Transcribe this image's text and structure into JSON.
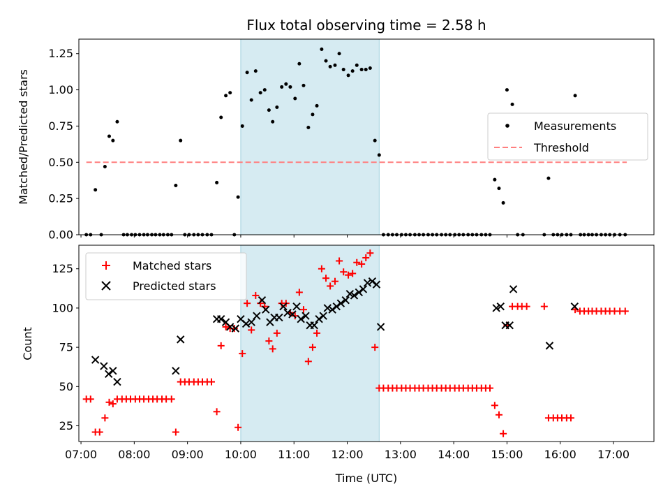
{
  "chart_data": {
    "title": "Flux total observing time = 2.58 h",
    "xlabel": "Time (UTC)",
    "x_unit": "hours UTC",
    "xlim": [
      6.96,
      17.76
    ],
    "xticks": [
      7,
      8,
      9,
      10,
      11,
      12,
      13,
      14,
      15,
      16,
      17
    ],
    "xtick_labels": [
      "07:00",
      "08:00",
      "09:00",
      "10:00",
      "11:00",
      "12:00",
      "13:00",
      "14:00",
      "15:00",
      "16:00",
      "17:00"
    ],
    "highlight_span": [
      10.0,
      12.6
    ],
    "colors": {
      "measurements": "#000000",
      "threshold": "#ff7f7f",
      "matched": "#ff0000",
      "predicted": "#000000",
      "span": "#add8e6"
    },
    "top": {
      "type": "scatter",
      "ylabel": "Matched/Predicted stars",
      "ylim": [
        0,
        1.35
      ],
      "yticks": [
        0,
        0.25,
        0.5,
        0.75,
        1.0,
        1.25
      ],
      "ytick_labels": [
        "0.00",
        "0.25",
        "0.50",
        "0.75",
        "1.00",
        "1.25"
      ],
      "legend": [
        "Measurements",
        "Threshold"
      ],
      "threshold": {
        "value": 0.5,
        "x": [
          7.1,
          17.25
        ]
      },
      "points": [
        [
          7.1,
          0
        ],
        [
          7.18,
          0
        ],
        [
          7.27,
          0.31
        ],
        [
          7.38,
          0
        ],
        [
          7.45,
          0.47
        ],
        [
          7.53,
          0.68
        ],
        [
          7.6,
          0.65
        ],
        [
          7.68,
          0.78
        ],
        [
          7.8,
          0
        ],
        [
          7.87,
          0
        ],
        [
          7.95,
          0
        ],
        [
          8.02,
          0
        ],
        [
          8.1,
          0
        ],
        [
          8.18,
          0
        ],
        [
          8.25,
          0
        ],
        [
          8.33,
          0
        ],
        [
          8.4,
          0
        ],
        [
          8.48,
          0
        ],
        [
          8.55,
          0
        ],
        [
          8.63,
          0
        ],
        [
          8.7,
          0
        ],
        [
          8.78,
          0.34
        ],
        [
          8.87,
          0.65
        ],
        [
          8.95,
          0
        ],
        [
          9.03,
          0
        ],
        [
          9.12,
          0
        ],
        [
          9.2,
          0
        ],
        [
          9.28,
          0
        ],
        [
          9.37,
          0
        ],
        [
          9.45,
          0
        ],
        [
          9.55,
          0.36
        ],
        [
          9.63,
          0.81
        ],
        [
          9.72,
          0.96
        ],
        [
          9.8,
          0.98
        ],
        [
          9.88,
          0
        ],
        [
          9.95,
          0.26
        ],
        [
          10.03,
          0.75
        ],
        [
          10.12,
          1.12
        ],
        [
          10.2,
          0.93
        ],
        [
          10.28,
          1.13
        ],
        [
          10.37,
          0.98
        ],
        [
          10.45,
          1.0
        ],
        [
          10.53,
          0.86
        ],
        [
          10.6,
          0.78
        ],
        [
          10.68,
          0.88
        ],
        [
          10.77,
          1.02
        ],
        [
          10.85,
          1.04
        ],
        [
          10.93,
          1.02
        ],
        [
          11.02,
          0.94
        ],
        [
          11.1,
          1.18
        ],
        [
          11.18,
          1.03
        ],
        [
          11.27,
          0.74
        ],
        [
          11.35,
          0.83
        ],
        [
          11.43,
          0.89
        ],
        [
          11.52,
          1.28
        ],
        [
          11.6,
          1.2
        ],
        [
          11.68,
          1.16
        ],
        [
          11.77,
          1.17
        ],
        [
          11.85,
          1.25
        ],
        [
          11.93,
          1.14
        ],
        [
          12.02,
          1.1
        ],
        [
          12.1,
          1.13
        ],
        [
          12.18,
          1.17
        ],
        [
          12.27,
          1.14
        ],
        [
          12.35,
          1.14
        ],
        [
          12.43,
          1.15
        ],
        [
          12.52,
          0.65
        ],
        [
          12.6,
          0.55
        ],
        [
          12.68,
          0
        ],
        [
          12.77,
          0
        ],
        [
          12.85,
          0
        ],
        [
          12.93,
          0
        ],
        [
          13.02,
          0
        ],
        [
          13.1,
          0
        ],
        [
          13.18,
          0
        ],
        [
          13.27,
          0
        ],
        [
          13.35,
          0
        ],
        [
          13.43,
          0
        ],
        [
          13.52,
          0
        ],
        [
          13.6,
          0
        ],
        [
          13.68,
          0
        ],
        [
          13.77,
          0
        ],
        [
          13.85,
          0
        ],
        [
          13.93,
          0
        ],
        [
          14.02,
          0
        ],
        [
          14.1,
          0
        ],
        [
          14.18,
          0
        ],
        [
          14.27,
          0
        ],
        [
          14.35,
          0
        ],
        [
          14.43,
          0
        ],
        [
          14.52,
          0
        ],
        [
          14.6,
          0
        ],
        [
          14.68,
          0
        ],
        [
          14.77,
          0.38
        ],
        [
          14.85,
          0.32
        ],
        [
          14.93,
          0.22
        ],
        [
          15.0,
          1.0
        ],
        [
          15.1,
          0.9
        ],
        [
          15.2,
          0
        ],
        [
          15.3,
          0
        ],
        [
          15.7,
          0
        ],
        [
          15.78,
          0.39
        ],
        [
          15.87,
          0
        ],
        [
          15.95,
          0
        ],
        [
          16.03,
          0
        ],
        [
          16.12,
          0
        ],
        [
          16.2,
          0
        ],
        [
          16.28,
          0.96
        ],
        [
          16.38,
          0
        ],
        [
          16.45,
          0
        ],
        [
          16.53,
          0
        ],
        [
          16.6,
          0
        ],
        [
          16.68,
          0
        ],
        [
          16.77,
          0
        ],
        [
          16.85,
          0
        ],
        [
          16.93,
          0
        ],
        [
          17.02,
          0
        ],
        [
          17.12,
          0
        ],
        [
          17.22,
          0
        ]
      ]
    },
    "bottom": {
      "type": "scatter",
      "ylabel": "Count",
      "ylim": [
        15,
        140
      ],
      "yticks": [
        25,
        50,
        75,
        100,
        125
      ],
      "ytick_labels": [
        "25",
        "50",
        "75",
        "100",
        "125"
      ],
      "legend": [
        "Matched stars",
        "Predicted stars"
      ],
      "matched": [
        [
          7.1,
          42
        ],
        [
          7.18,
          42
        ],
        [
          7.27,
          21
        ],
        [
          7.35,
          21
        ],
        [
          7.45,
          30
        ],
        [
          7.53,
          40
        ],
        [
          7.6,
          39
        ],
        [
          7.68,
          42
        ],
        [
          7.77,
          42
        ],
        [
          7.85,
          42
        ],
        [
          7.93,
          42
        ],
        [
          8.02,
          42
        ],
        [
          8.1,
          42
        ],
        [
          8.18,
          42
        ],
        [
          8.27,
          42
        ],
        [
          8.35,
          42
        ],
        [
          8.43,
          42
        ],
        [
          8.52,
          42
        ],
        [
          8.6,
          42
        ],
        [
          8.7,
          42
        ],
        [
          8.78,
          21
        ],
        [
          8.87,
          53
        ],
        [
          8.95,
          53
        ],
        [
          9.03,
          53
        ],
        [
          9.12,
          53
        ],
        [
          9.2,
          53
        ],
        [
          9.28,
          53
        ],
        [
          9.37,
          53
        ],
        [
          9.45,
          53
        ],
        [
          9.55,
          34
        ],
        [
          9.63,
          76
        ],
        [
          9.72,
          88
        ],
        [
          9.8,
          87
        ],
        [
          9.88,
          87
        ],
        [
          9.95,
          24
        ],
        [
          10.03,
          71
        ],
        [
          10.12,
          103
        ],
        [
          10.2,
          86
        ],
        [
          10.28,
          108
        ],
        [
          10.37,
          103
        ],
        [
          10.45,
          101
        ],
        [
          10.53,
          79
        ],
        [
          10.6,
          74
        ],
        [
          10.68,
          84
        ],
        [
          10.77,
          103
        ],
        [
          10.85,
          103
        ],
        [
          10.93,
          97
        ],
        [
          11.02,
          95
        ],
        [
          11.1,
          110
        ],
        [
          11.18,
          99
        ],
        [
          11.27,
          66
        ],
        [
          11.35,
          75
        ],
        [
          11.43,
          84
        ],
        [
          11.52,
          125
        ],
        [
          11.6,
          119
        ],
        [
          11.68,
          114
        ],
        [
          11.77,
          117
        ],
        [
          11.85,
          130
        ],
        [
          11.93,
          123
        ],
        [
          12.02,
          121
        ],
        [
          12.1,
          122
        ],
        [
          12.18,
          129
        ],
        [
          12.27,
          128
        ],
        [
          12.35,
          132
        ],
        [
          12.43,
          135
        ],
        [
          12.52,
          75
        ],
        [
          12.6,
          49
        ],
        [
          12.68,
          49
        ],
        [
          12.77,
          49
        ],
        [
          12.85,
          49
        ],
        [
          12.93,
          49
        ],
        [
          13.02,
          49
        ],
        [
          13.1,
          49
        ],
        [
          13.18,
          49
        ],
        [
          13.27,
          49
        ],
        [
          13.35,
          49
        ],
        [
          13.43,
          49
        ],
        [
          13.52,
          49
        ],
        [
          13.6,
          49
        ],
        [
          13.68,
          49
        ],
        [
          13.77,
          49
        ],
        [
          13.85,
          49
        ],
        [
          13.93,
          49
        ],
        [
          14.02,
          49
        ],
        [
          14.1,
          49
        ],
        [
          14.18,
          49
        ],
        [
          14.27,
          49
        ],
        [
          14.35,
          49
        ],
        [
          14.43,
          49
        ],
        [
          14.52,
          49
        ],
        [
          14.6,
          49
        ],
        [
          14.68,
          49
        ],
        [
          14.77,
          38
        ],
        [
          14.85,
          32
        ],
        [
          14.93,
          20
        ],
        [
          15.0,
          89
        ],
        [
          15.1,
          101
        ],
        [
          15.2,
          101
        ],
        [
          15.28,
          101
        ],
        [
          15.37,
          101
        ],
        [
          15.7,
          101
        ],
        [
          15.78,
          30
        ],
        [
          15.87,
          30
        ],
        [
          15.95,
          30
        ],
        [
          16.03,
          30
        ],
        [
          16.12,
          30
        ],
        [
          16.2,
          30
        ],
        [
          16.28,
          99
        ],
        [
          16.37,
          98
        ],
        [
          16.45,
          98
        ],
        [
          16.53,
          98
        ],
        [
          16.6,
          98
        ],
        [
          16.68,
          98
        ],
        [
          16.77,
          98
        ],
        [
          16.85,
          98
        ],
        [
          16.93,
          98
        ],
        [
          17.02,
          98
        ],
        [
          17.12,
          98
        ],
        [
          17.22,
          98
        ]
      ],
      "predicted": [
        [
          7.27,
          67
        ],
        [
          7.43,
          63
        ],
        [
          7.52,
          58
        ],
        [
          7.6,
          60
        ],
        [
          7.68,
          53
        ],
        [
          8.78,
          60
        ],
        [
          8.87,
          80
        ],
        [
          9.55,
          93
        ],
        [
          9.63,
          93
        ],
        [
          9.72,
          91
        ],
        [
          9.8,
          88
        ],
        [
          9.9,
          87
        ],
        [
          10.0,
          93
        ],
        [
          10.1,
          90
        ],
        [
          10.2,
          91
        ],
        [
          10.3,
          95
        ],
        [
          10.4,
          105
        ],
        [
          10.47,
          99
        ],
        [
          10.55,
          91
        ],
        [
          10.63,
          94
        ],
        [
          10.72,
          94
        ],
        [
          10.8,
          101
        ],
        [
          10.88,
          97
        ],
        [
          10.97,
          96
        ],
        [
          11.05,
          101
        ],
        [
          11.13,
          93
        ],
        [
          11.22,
          95
        ],
        [
          11.3,
          89
        ],
        [
          11.38,
          89
        ],
        [
          11.47,
          93
        ],
        [
          11.55,
          95
        ],
        [
          11.63,
          100
        ],
        [
          11.72,
          99
        ],
        [
          11.8,
          101
        ],
        [
          11.88,
          103
        ],
        [
          11.97,
          105
        ],
        [
          12.05,
          109
        ],
        [
          12.13,
          108
        ],
        [
          12.22,
          110
        ],
        [
          12.3,
          112
        ],
        [
          12.38,
          116
        ],
        [
          12.47,
          117
        ],
        [
          12.55,
          115
        ],
        [
          12.63,
          88
        ],
        [
          14.8,
          100
        ],
        [
          14.88,
          101
        ],
        [
          14.97,
          89
        ],
        [
          15.05,
          89
        ],
        [
          15.12,
          112
        ],
        [
          15.8,
          76
        ],
        [
          16.27,
          101
        ]
      ]
    }
  }
}
